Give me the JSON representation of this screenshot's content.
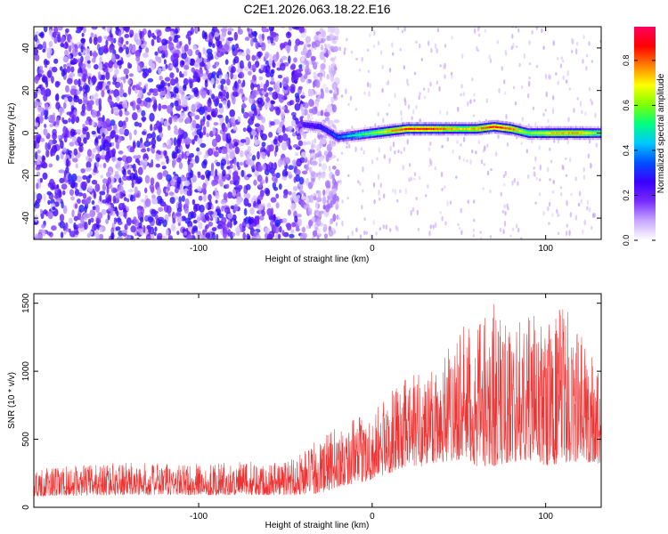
{
  "figure_title": "C2E1.2026.063.18.22.E16",
  "chart_data": [
    {
      "type": "heatmap",
      "title": "C2E1.2026.063.18.22.E16",
      "xlabel": "Height of straight line (km)",
      "ylabel": "Frequency (Hz)",
      "xlim": [
        -195,
        132
      ],
      "ylim": [
        -50,
        50
      ],
      "xticks": [
        -100,
        0,
        100
      ],
      "yticks": [
        -40,
        -20,
        0,
        20,
        40
      ],
      "colorbar": {
        "label": "Normalized spectral amplitude",
        "range": [
          0,
          0.95
        ],
        "ticks": [
          "0.0",
          "0.2",
          "0.4",
          "0.6",
          "0.8"
        ],
        "tick_values": [
          0.0,
          0.2,
          0.4,
          0.6,
          0.8
        ],
        "colors": [
          "#ffffff",
          "#c8a8ff",
          "#7a2cff",
          "#3a00ff",
          "#0050ff",
          "#00c8ff",
          "#00ff80",
          "#80ff00",
          "#ffff00",
          "#ff8000",
          "#ff0000",
          "#ff0060"
        ]
      },
      "ridge": {
        "description_values": "dominant frequency vs height",
        "x": [
          -40,
          -30,
          -20,
          -10,
          0,
          10,
          20,
          30,
          40,
          50,
          60,
          70,
          80,
          90,
          100,
          110,
          120,
          130
        ],
        "y": [
          4,
          3,
          -2,
          -1,
          0,
          1,
          2,
          2,
          2,
          2,
          2,
          3,
          2,
          0,
          0,
          0,
          0,
          0
        ],
        "amplitude": [
          0.25,
          0.3,
          0.35,
          0.5,
          0.6,
          0.75,
          0.85,
          0.85,
          0.8,
          0.7,
          0.75,
          0.85,
          0.8,
          0.6,
          0.7,
          0.75,
          0.75,
          0.6
        ]
      },
      "noise_region": {
        "x_from": -195,
        "x_to": -40,
        "amplitude_range": [
          0.05,
          0.3
        ]
      }
    },
    {
      "type": "line",
      "xlabel": "Height of straight line (km)",
      "ylabel": "SNR (10 * v/v)",
      "xlim": [
        -195,
        132
      ],
      "ylim": [
        0,
        1570
      ],
      "xticks": [
        -100,
        0,
        100
      ],
      "yticks": [
        0,
        500,
        1000,
        1500
      ],
      "line_color": "#ee3333",
      "envelope": {
        "x": [
          -195,
          -150,
          -100,
          -50,
          -30,
          -20,
          0,
          10,
          20,
          30,
          40,
          50,
          60,
          70,
          80,
          90,
          100,
          110,
          120,
          132
        ],
        "y_low": [
          80,
          90,
          90,
          90,
          100,
          150,
          200,
          250,
          300,
          300,
          330,
          350,
          300,
          300,
          330,
          350,
          300,
          330,
          330,
          320
        ],
        "y_high": [
          280,
          330,
          320,
          350,
          500,
          600,
          700,
          850,
          950,
          1050,
          1150,
          1350,
          1300,
          1550,
          1300,
          1450,
          1350,
          1500,
          1300,
          1100
        ]
      }
    }
  ]
}
